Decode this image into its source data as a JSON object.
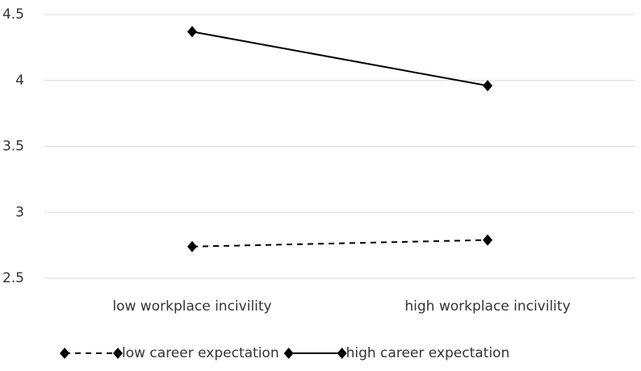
{
  "chart_data": {
    "type": "line",
    "categories": [
      "low workplace incivility",
      "high workplace incivility"
    ],
    "series": [
      {
        "name": "low career expectation",
        "color": "#000000",
        "style": "dashed",
        "values": [
          2.74,
          2.79
        ]
      },
      {
        "name": "high career expectation",
        "color": "#000000",
        "style": "solid",
        "values": [
          4.37,
          3.96
        ]
      }
    ],
    "ylim": [
      2.5,
      4.5
    ],
    "yticks": [
      2.5,
      3,
      3.5,
      4,
      4.5
    ],
    "grid": true,
    "legend": "bottom"
  }
}
